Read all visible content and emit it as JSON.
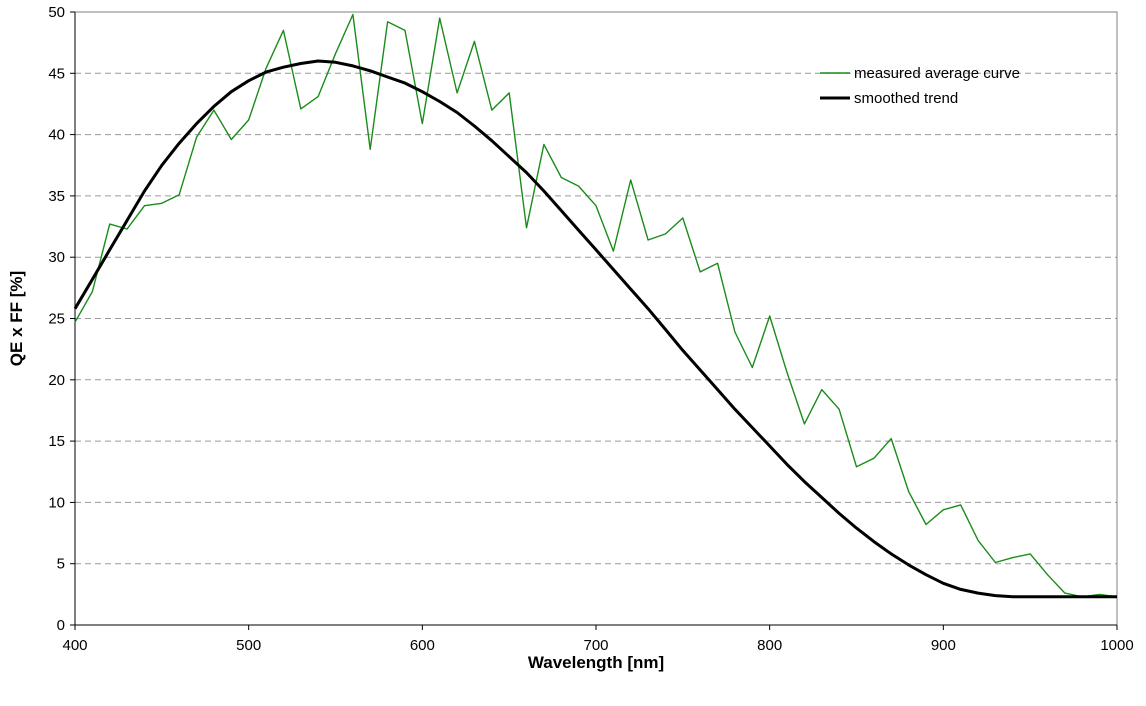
{
  "chart_data": {
    "type": "line",
    "title": "",
    "xlabel": "Wavelength [nm]",
    "ylabel": "QE x FF [%]",
    "xlim": [
      400,
      1000
    ],
    "ylim": [
      0,
      50
    ],
    "x_ticks": [
      400,
      500,
      600,
      700,
      800,
      900,
      1000
    ],
    "y_ticks": [
      0,
      5,
      10,
      15,
      20,
      25,
      30,
      35,
      40,
      45,
      50
    ],
    "grid": "horizontal dashed",
    "legend_position": "top-right",
    "series": [
      {
        "name": "measured average curve",
        "color": "#1a8c1a",
        "x": [
          400,
          410,
          420,
          430,
          440,
          450,
          460,
          470,
          480,
          490,
          500,
          510,
          520,
          530,
          540,
          550,
          560,
          570,
          580,
          590,
          600,
          610,
          620,
          630,
          640,
          650,
          660,
          670,
          680,
          690,
          700,
          710,
          720,
          730,
          740,
          750,
          760,
          770,
          780,
          790,
          800,
          810,
          820,
          830,
          840,
          850,
          860,
          870,
          880,
          890,
          900,
          910,
          920,
          930,
          940,
          950,
          960,
          970,
          980,
          990,
          1000
        ],
        "y": [
          24.7,
          27.2,
          32.7,
          32.3,
          34.2,
          34.4,
          35.1,
          39.8,
          42.0,
          39.6,
          41.2,
          45.4,
          48.5,
          42.1,
          43.1,
          46.6,
          49.8,
          38.8,
          49.2,
          48.5,
          40.9,
          49.5,
          43.4,
          47.6,
          42.0,
          43.4,
          32.4,
          39.2,
          36.5,
          35.8,
          34.2,
          30.5,
          36.3,
          31.4,
          31.9,
          33.2,
          28.8,
          29.5,
          23.9,
          21.0,
          25.2,
          20.6,
          16.4,
          19.2,
          17.6,
          12.9,
          13.6,
          15.2,
          10.9,
          8.2,
          9.4,
          9.8,
          6.9,
          5.1,
          5.5,
          5.8,
          4.1,
          2.6,
          2.3,
          2.5,
          2.3
        ]
      },
      {
        "name": "smoothed trend",
        "color": "#000000",
        "x": [
          400,
          410,
          420,
          430,
          440,
          450,
          460,
          470,
          480,
          490,
          500,
          510,
          520,
          530,
          540,
          550,
          560,
          570,
          580,
          590,
          600,
          610,
          620,
          630,
          640,
          650,
          660,
          670,
          680,
          690,
          700,
          710,
          720,
          730,
          740,
          750,
          760,
          770,
          780,
          790,
          800,
          810,
          820,
          830,
          840,
          850,
          860,
          870,
          880,
          890,
          900,
          910,
          920,
          930,
          940,
          950,
          960,
          970,
          980,
          990,
          1000
        ],
        "y": [
          25.8,
          28.2,
          30.6,
          33.0,
          35.4,
          37.5,
          39.3,
          40.9,
          42.3,
          43.5,
          44.4,
          45.1,
          45.5,
          45.8,
          46.0,
          45.9,
          45.6,
          45.2,
          44.7,
          44.2,
          43.5,
          42.7,
          41.8,
          40.7,
          39.5,
          38.2,
          36.9,
          35.4,
          33.8,
          32.2,
          30.6,
          29.0,
          27.4,
          25.8,
          24.1,
          22.4,
          20.8,
          19.2,
          17.6,
          16.1,
          14.6,
          13.1,
          11.7,
          10.4,
          9.1,
          7.9,
          6.8,
          5.8,
          4.9,
          4.1,
          3.4,
          2.9,
          2.6,
          2.4,
          2.3,
          2.3,
          2.3,
          2.3,
          2.3,
          2.3,
          2.3
        ]
      }
    ]
  }
}
